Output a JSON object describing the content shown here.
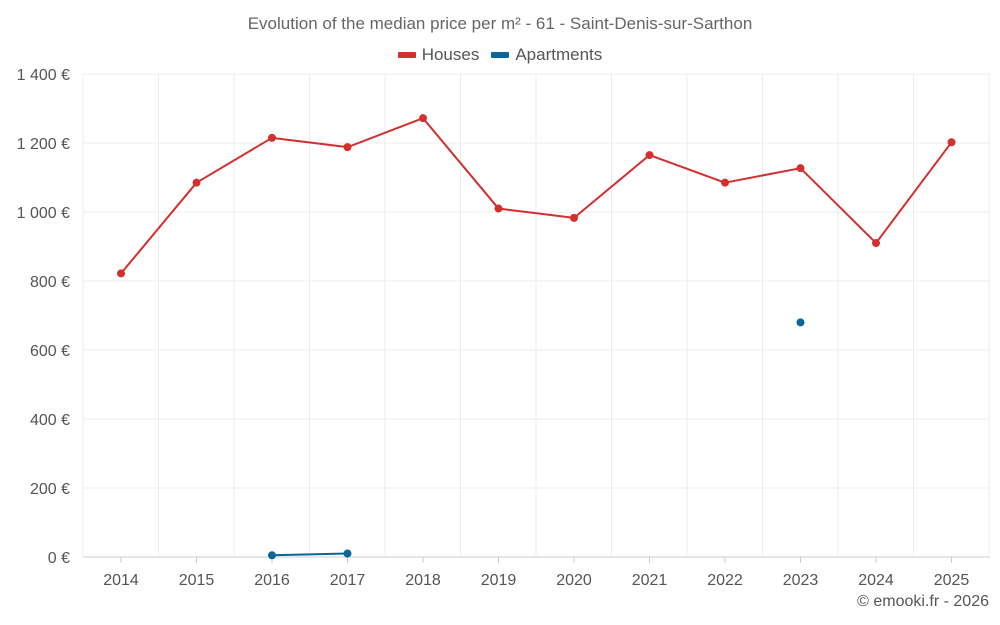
{
  "chart_data": {
    "type": "line",
    "title": "Evolution of the median price per m² - 61 - Saint-Denis-sur-Sarthon",
    "categories": [
      "2014",
      "2015",
      "2016",
      "2017",
      "2018",
      "2019",
      "2020",
      "2021",
      "2022",
      "2023",
      "2024",
      "2025"
    ],
    "y_tick_labels": [
      "0 €",
      "200 €",
      "400 €",
      "600 €",
      "800 €",
      "1 000 €",
      "1 200 €",
      "1 400 €"
    ],
    "y_ticks": [
      0,
      200,
      400,
      600,
      800,
      1000,
      1200,
      1400
    ],
    "ylim": [
      0,
      1400
    ],
    "xlabel": "",
    "ylabel": "",
    "grid": true,
    "legend_position": "top-center",
    "series": [
      {
        "name": "Houses",
        "color": "#d32f2f",
        "values": [
          822,
          1085,
          1215,
          1188,
          1272,
          1010,
          983,
          1165,
          1085,
          1127,
          910,
          1202
        ]
      },
      {
        "name": "Apartments",
        "color": "#0d6699",
        "values": [
          null,
          null,
          5,
          10,
          null,
          null,
          null,
          null,
          null,
          680,
          null,
          null
        ]
      }
    ]
  },
  "credit": "© emooki.fr - 2026"
}
